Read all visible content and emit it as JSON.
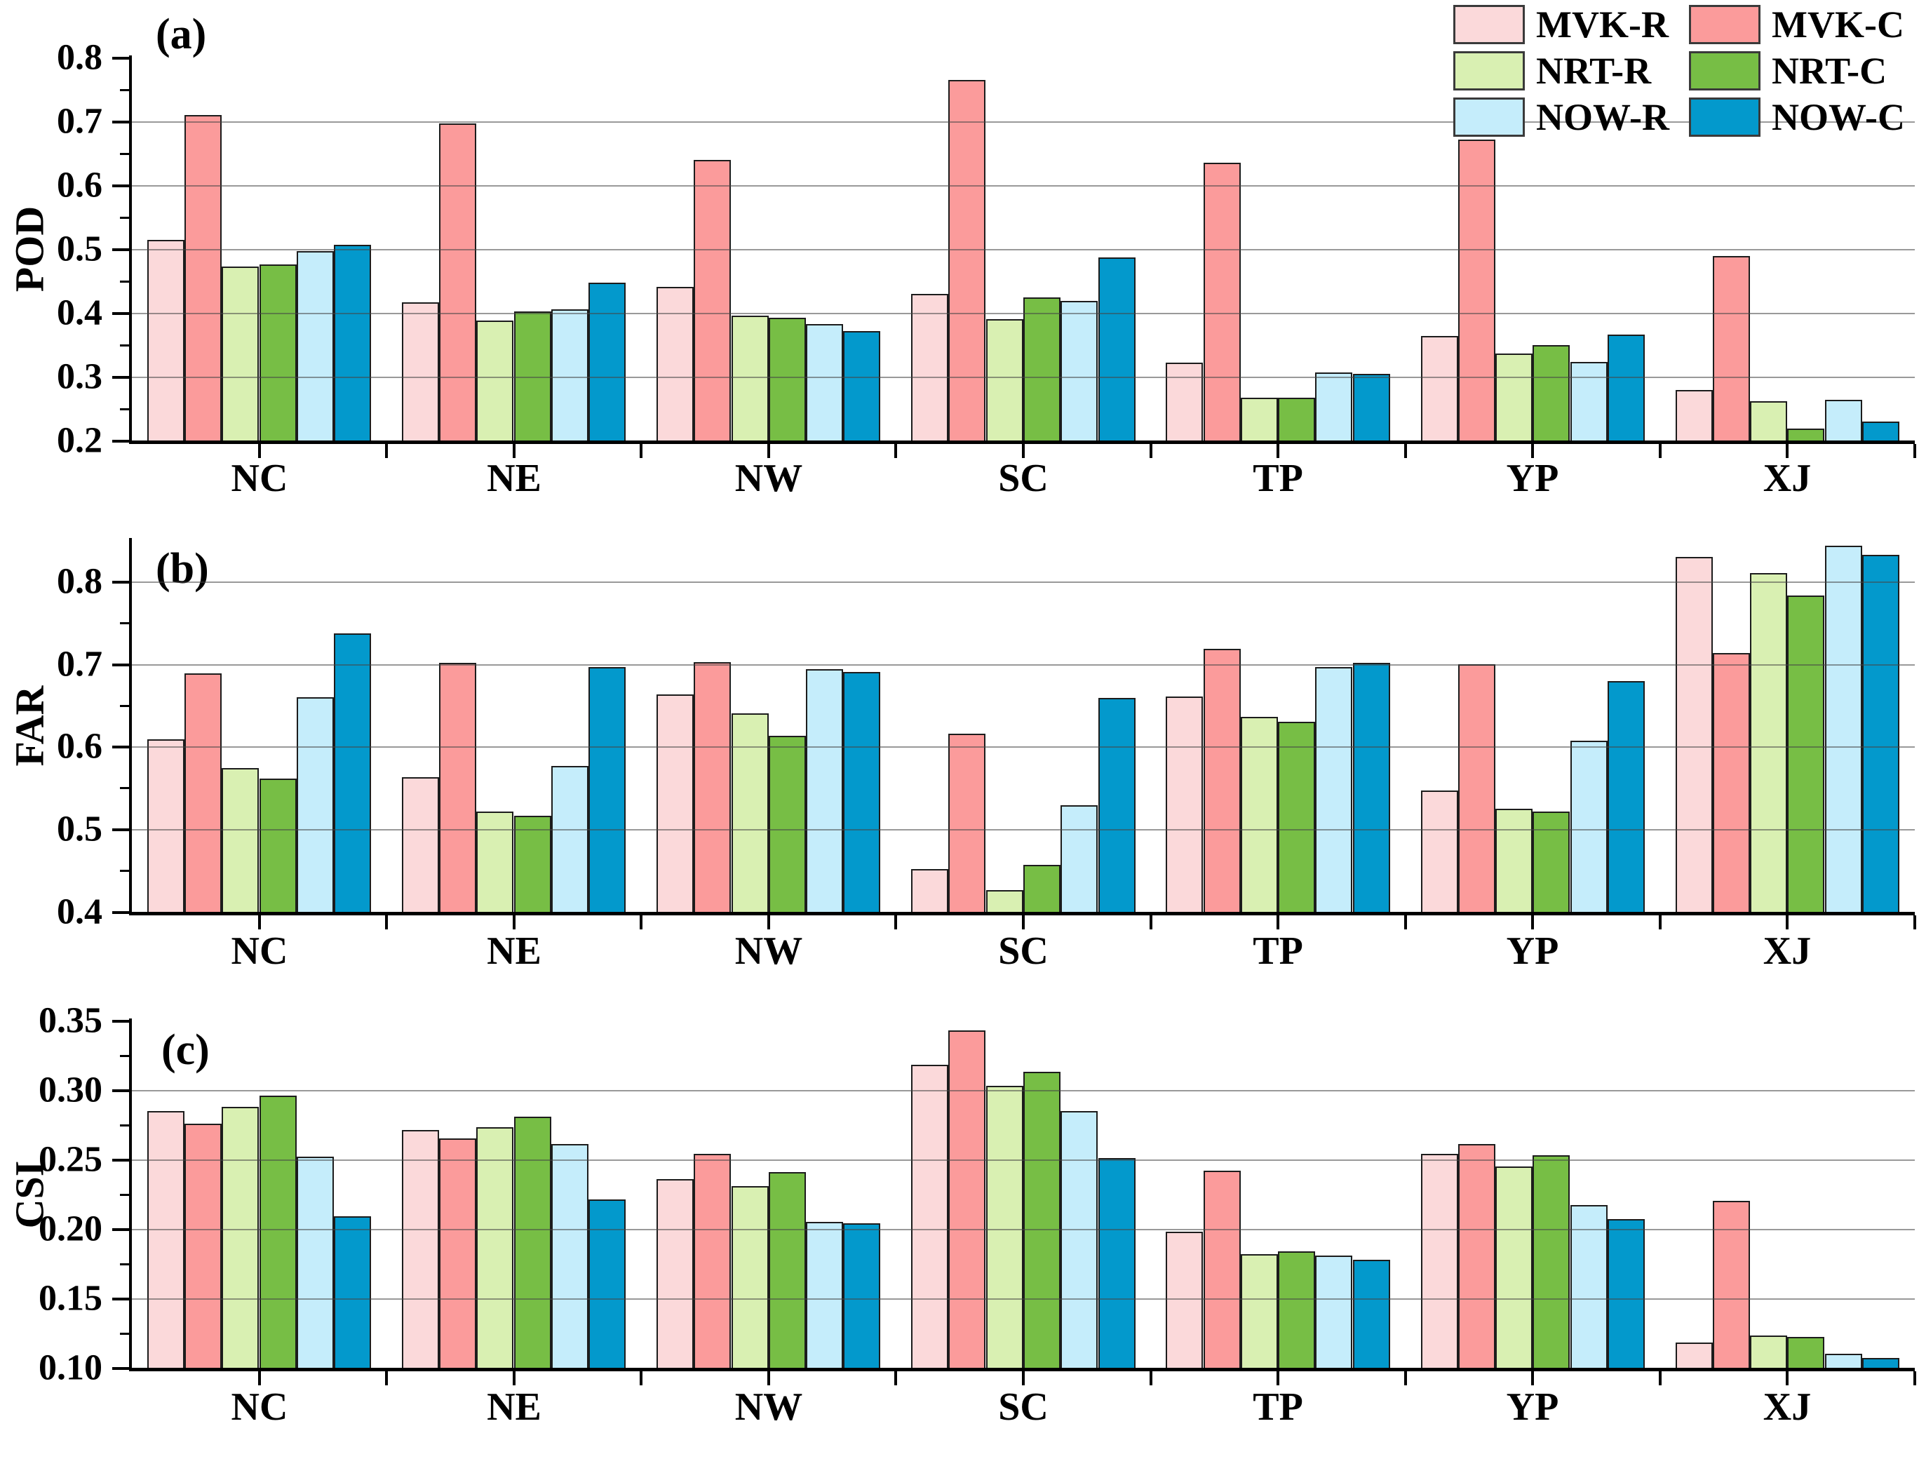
{
  "legend": {
    "items": [
      {
        "name": "MVK-R",
        "color": "#fbd9da"
      },
      {
        "name": "MVK-C",
        "color": "#fb9b9b"
      },
      {
        "name": "NRT-R",
        "color": "#d9f0b2"
      },
      {
        "name": "NRT-C",
        "color": "#77be45"
      },
      {
        "name": "NOW-R",
        "color": "#c5edfb"
      },
      {
        "name": "NOW-C",
        "color": "#0399cc"
      }
    ]
  },
  "colors": {
    "bar_border": "#1c1c1c",
    "gridline": "#464646",
    "axis": "#000000"
  },
  "chart_data": [
    {
      "type": "bar",
      "panel_letter": "(a)",
      "ylabel": "POD",
      "ylim": [
        0.2,
        0.8
      ],
      "yticks": [
        0.2,
        0.3,
        0.4,
        0.5,
        0.6,
        0.7,
        0.8
      ],
      "ytick_labels": [
        "0.2",
        "0.3",
        "0.4",
        "0.5",
        "0.6",
        "0.7",
        "0.8"
      ],
      "minor_yticks": [
        0.25,
        0.35,
        0.45,
        0.55,
        0.65,
        0.75
      ],
      "gridlines": [
        0.3,
        0.4,
        0.5,
        0.6,
        0.7
      ],
      "grid_on": true,
      "legend_position": "top-right-outside",
      "categories": [
        "NC",
        "NE",
        "NW",
        "SC",
        "TP",
        "YP",
        "XJ"
      ],
      "series": [
        {
          "name": "MVK-R",
          "values": [
            0.514,
            0.416,
            0.441,
            0.43,
            0.322,
            0.364,
            0.279
          ]
        },
        {
          "name": "MVK-C",
          "values": [
            0.71,
            0.697,
            0.64,
            0.765,
            0.635,
            0.671,
            0.489
          ]
        },
        {
          "name": "NRT-R",
          "values": [
            0.472,
            0.388,
            0.396,
            0.39,
            0.267,
            0.336,
            0.261
          ]
        },
        {
          "name": "NRT-C",
          "values": [
            0.476,
            0.402,
            0.392,
            0.424,
            0.267,
            0.349,
            0.219
          ]
        },
        {
          "name": "NOW-R",
          "values": [
            0.497,
            0.405,
            0.382,
            0.419,
            0.307,
            0.323,
            0.264
          ]
        },
        {
          "name": "NOW-C",
          "values": [
            0.507,
            0.447,
            0.371,
            0.487,
            0.304,
            0.366,
            0.23
          ]
        }
      ]
    },
    {
      "type": "bar",
      "panel_letter": "(b)",
      "ylabel": "FAR",
      "ylim": [
        0.4,
        0.85
      ],
      "yticks": [
        0.4,
        0.5,
        0.6,
        0.7,
        0.8
      ],
      "ytick_labels": [
        "0.4",
        "0.5",
        "0.6",
        "0.7",
        "0.8"
      ],
      "minor_yticks": [
        0.45,
        0.55,
        0.65,
        0.75
      ],
      "gridlines": [
        0.5,
        0.6,
        0.7,
        0.8
      ],
      "grid_on": true,
      "categories": [
        "NC",
        "NE",
        "NW",
        "SC",
        "TP",
        "YP",
        "XJ"
      ],
      "series": [
        {
          "name": "MVK-R",
          "values": [
            0.609,
            0.563,
            0.663,
            0.452,
            0.661,
            0.547,
            0.83
          ]
        },
        {
          "name": "MVK-C",
          "values": [
            0.689,
            0.701,
            0.702,
            0.616,
            0.718,
            0.7,
            0.713
          ]
        },
        {
          "name": "NRT-R",
          "values": [
            0.574,
            0.521,
            0.64,
            0.426,
            0.636,
            0.525,
            0.81
          ]
        },
        {
          "name": "NRT-C",
          "values": [
            0.561,
            0.516,
            0.613,
            0.457,
            0.63,
            0.521,
            0.783
          ]
        },
        {
          "name": "NOW-R",
          "values": [
            0.66,
            0.577,
            0.694,
            0.529,
            0.696,
            0.607,
            0.843
          ]
        },
        {
          "name": "NOW-C",
          "values": [
            0.737,
            0.696,
            0.69,
            0.659,
            0.701,
            0.679,
            0.832
          ]
        }
      ]
    },
    {
      "type": "bar",
      "panel_letter": "(c)",
      "ylabel": "CSI",
      "ylim": [
        0.1,
        0.35
      ],
      "yticks": [
        0.1,
        0.15,
        0.2,
        0.25,
        0.3,
        0.35
      ],
      "ytick_labels": [
        "0.10",
        "0.15",
        "0.20",
        "0.25",
        "0.30",
        "0.35"
      ],
      "minor_yticks": [
        0.125,
        0.175,
        0.225,
        0.275,
        0.325
      ],
      "gridlines": [
        0.15,
        0.2,
        0.25,
        0.3
      ],
      "grid_on": true,
      "categories": [
        "NC",
        "NE",
        "NW",
        "SC",
        "TP",
        "YP",
        "XJ"
      ],
      "series": [
        {
          "name": "MVK-R",
          "values": [
            0.285,
            0.271,
            0.236,
            0.318,
            0.198,
            0.254,
            0.118
          ]
        },
        {
          "name": "MVK-C",
          "values": [
            0.276,
            0.265,
            0.254,
            0.343,
            0.242,
            0.261,
            0.22
          ]
        },
        {
          "name": "NRT-R",
          "values": [
            0.288,
            0.273,
            0.231,
            0.303,
            0.182,
            0.245,
            0.123
          ]
        },
        {
          "name": "NRT-C",
          "values": [
            0.296,
            0.281,
            0.241,
            0.313,
            0.184,
            0.253,
            0.122
          ]
        },
        {
          "name": "NOW-R",
          "values": [
            0.252,
            0.261,
            0.205,
            0.285,
            0.181,
            0.217,
            0.11
          ]
        },
        {
          "name": "NOW-C",
          "values": [
            0.209,
            0.221,
            0.204,
            0.251,
            0.178,
            0.207,
            0.107
          ]
        }
      ]
    }
  ]
}
